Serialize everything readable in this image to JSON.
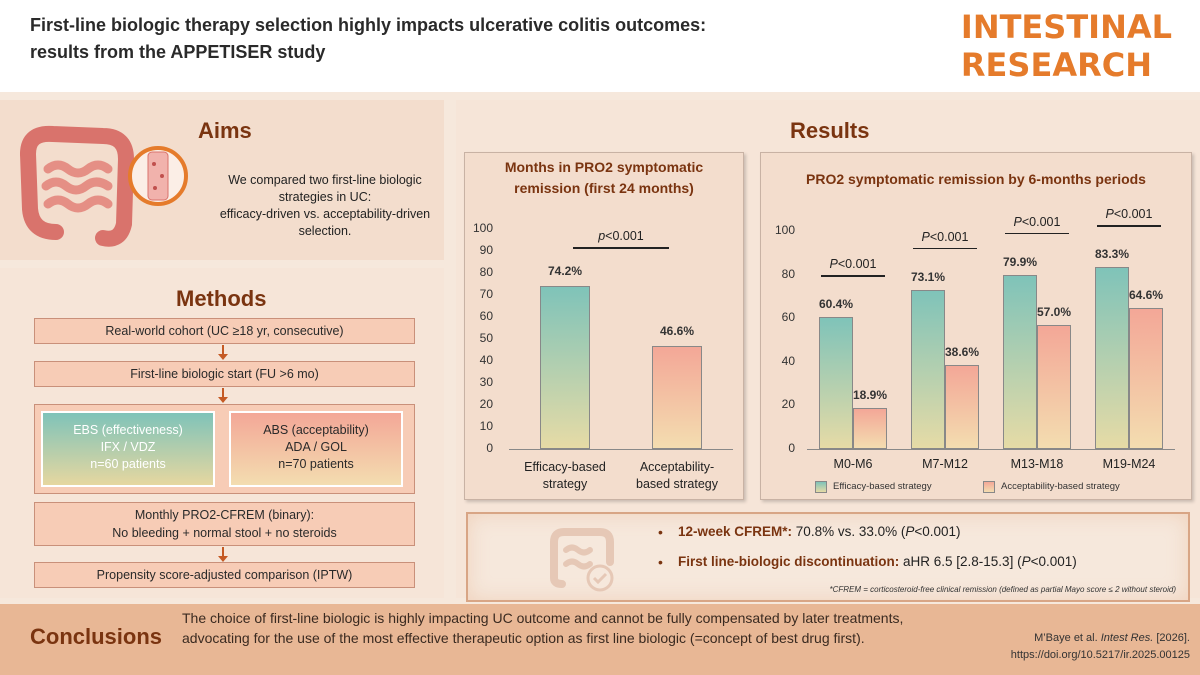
{
  "header": {
    "title_line1": "First-line biologic therapy selection highly impacts ulcerative colitis outcomes:",
    "title_line2": "results from the APPETISER study",
    "journal_line1": "INTESTINAL",
    "journal_line2": "RESEARCH"
  },
  "aims": {
    "title": "Aims",
    "text_line1": "We compared two first-line biologic",
    "text_line2": "strategies in UC:",
    "text_line3": "efficacy-driven vs. acceptability-driven",
    "text_line4": "selection."
  },
  "methods": {
    "title": "Methods",
    "step1": "Real-world cohort (UC ≥18 yr, consecutive)",
    "step2": "First-line biologic start (FU >6 mo)",
    "ebs_line1": "EBS (effectiveness)",
    "ebs_line2": "IFX / VDZ",
    "ebs_line3": "n=60 patients",
    "abs_line1": "ABS (acceptability)",
    "abs_line2": "ADA / GOL",
    "abs_line3": "n=70 patients",
    "step4_line1": "Monthly PRO2-CFREM (binary):",
    "step4_line2": "No bleeding + normal stool + no steroids",
    "step5": "Propensity score-adjusted comparison (IPTW)"
  },
  "results": {
    "title": "Results"
  },
  "chart_data": [
    {
      "type": "bar",
      "title_line1": "Months in PRO2 symptomatic",
      "title_line2": "remission (first 24 months)",
      "categories": [
        "Efficacy-based strategy",
        "Acceptability-based strategy"
      ],
      "category_lines": [
        [
          "Efficacy-based",
          "strategy"
        ],
        [
          "Acceptability-",
          "based strategy"
        ]
      ],
      "values": [
        74.2,
        46.6
      ],
      "value_labels": [
        "74.2%",
        "46.6%"
      ],
      "yticks": [
        "0",
        "10",
        "20",
        "30",
        "40",
        "50",
        "60",
        "70",
        "80",
        "90",
        "100"
      ],
      "ylim": [
        0,
        100
      ],
      "pvalue_prefix": "p",
      "pvalue_suffix": "<0.001",
      "colors": [
        "#7fc3b9",
        "#f3a797"
      ]
    },
    {
      "type": "bar",
      "title": "PRO2 symptomatic remission by 6-months periods",
      "categories": [
        "M0-M6",
        "M7-M12",
        "M13-M18",
        "M19-M24"
      ],
      "series": [
        {
          "name": "Efficacy-based strategy",
          "values": [
            60.4,
            73.1,
            79.9,
            83.3
          ],
          "labels": [
            "60.4%",
            "73.1%",
            "79.9%",
            "83.3%"
          ],
          "color": "#7fc3b9"
        },
        {
          "name": "Acceptability-based strategy",
          "values": [
            18.9,
            38.6,
            57.0,
            64.6
          ],
          "labels": [
            "18.9%",
            "38.6%",
            "57.0%",
            "64.6%"
          ],
          "color": "#f3a797"
        }
      ],
      "yticks": [
        "0",
        "20",
        "40",
        "60",
        "80",
        "100"
      ],
      "ylim": [
        0,
        100
      ],
      "pvalue_prefix": "P",
      "pvalue_suffix": "<0.001"
    }
  ],
  "key_findings": {
    "item1_bold": "12-week CFREM*:",
    "item1_text": " 70.8% vs. 33.0% (",
    "item1_p": "P",
    "item1_tail": "<0.001)",
    "item2_bold": "First line-biologic discontinuation:",
    "item2_text": " aHR 6.5 [2.8-15.3] (",
    "item2_p": "P",
    "item2_tail": "<0.001)",
    "footnote": "*CFREM = corticosteroid-free clinical remission (defined as partial Mayo score ≤ 2 without steroid)"
  },
  "conclusions": {
    "title": "Conclusions",
    "text": "The choice of first-line biologic is highly impacting UC outcome and cannot be fully compensated by later treatments, advocating for the use of the most effective therapeutic option as first line biologic (=concept of best drug first).",
    "cite_line1_a": "M’Baye et al. ",
    "cite_line1_b": "Intest Res.",
    "cite_line1_c": " [2026].",
    "cite_line2": "https://doi.org/10.5217/ir.2025.00125"
  }
}
